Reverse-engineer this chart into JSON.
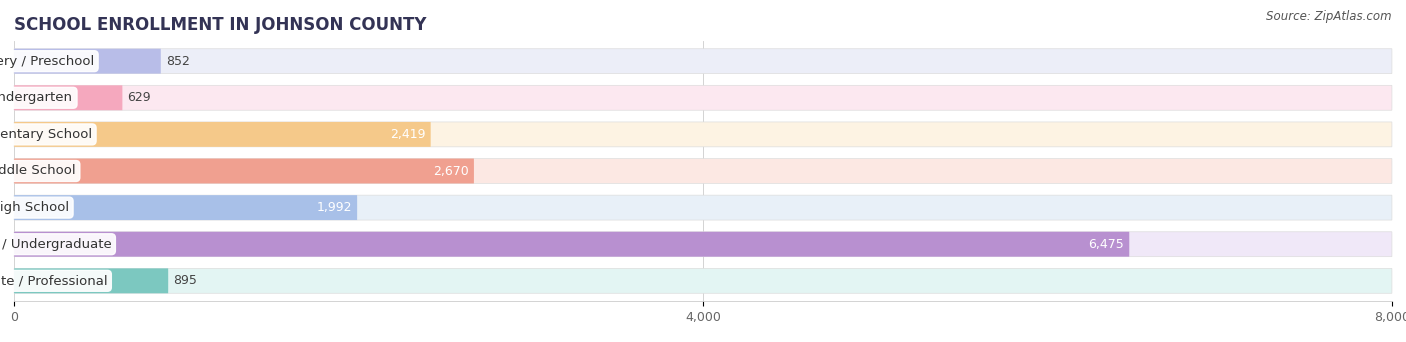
{
  "title": "SCHOOL ENROLLMENT IN JOHNSON COUNTY",
  "source": "Source: ZipAtlas.com",
  "categories": [
    "Nursery / Preschool",
    "Kindergarten",
    "Elementary School",
    "Middle School",
    "High School",
    "College / Undergraduate",
    "Graduate / Professional"
  ],
  "values": [
    852,
    629,
    2419,
    2670,
    1992,
    6475,
    895
  ],
  "bar_colors": [
    "#b8bde8",
    "#f5a8be",
    "#f5c98a",
    "#f0a090",
    "#a8c0e8",
    "#b890d0",
    "#7cc8c0"
  ],
  "bar_bg_colors": [
    "#eceef8",
    "#fce8f0",
    "#fdf3e3",
    "#fce8e3",
    "#e8f0f8",
    "#f0e8f8",
    "#e3f5f3"
  ],
  "xlim": [
    0,
    8000
  ],
  "xticks": [
    0,
    4000,
    8000
  ],
  "xtick_labels": [
    "0",
    "4,000",
    "8,000"
  ],
  "value_color_inside": "#ffffff",
  "value_color_outside": "#444444",
  "title_fontsize": 12,
  "source_fontsize": 8.5,
  "label_fontsize": 9.5,
  "value_fontsize": 9,
  "background_color": "#ffffff",
  "bar_height": 0.68,
  "bar_spacing": 1.0
}
